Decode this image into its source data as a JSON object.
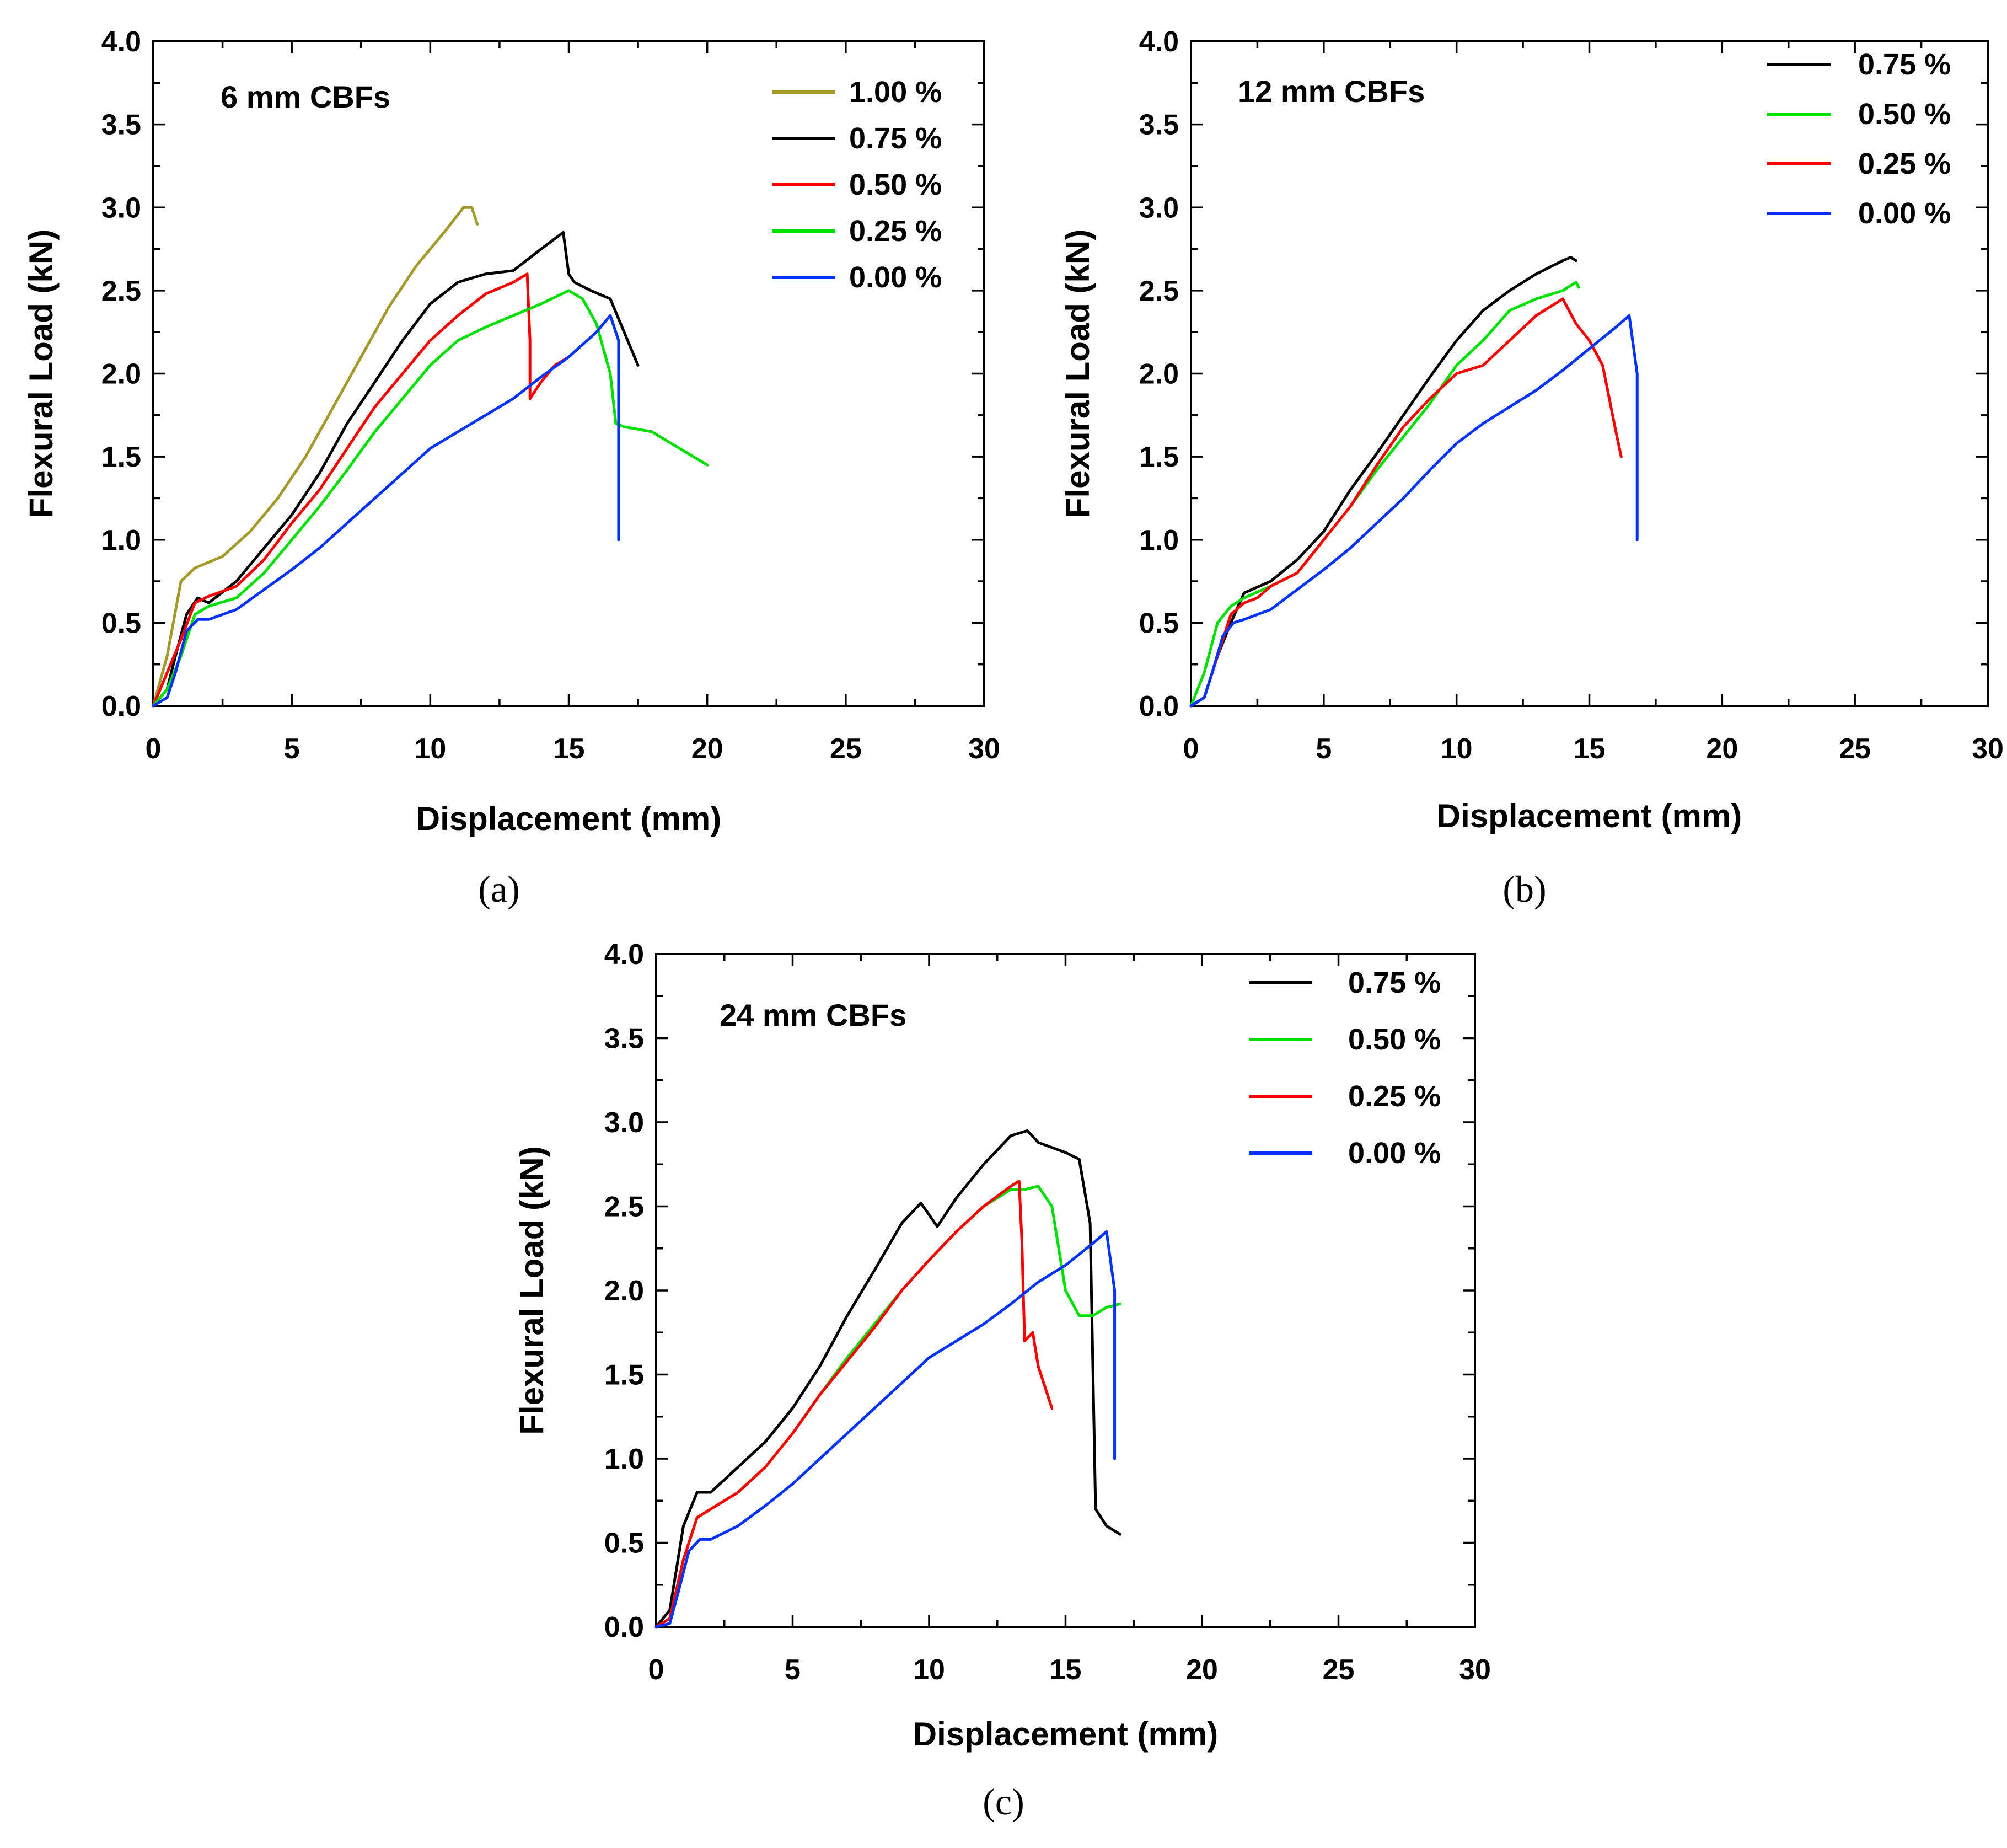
{
  "chart_data": [
    {
      "type": "line",
      "title": "6 mm CBFs",
      "caption": "(a)",
      "xlabel": "Displacement (mm)",
      "ylabel": "Flexural Load (kN)",
      "xlim": [
        0,
        30
      ],
      "ylim": [
        0,
        4
      ],
      "xticks": [
        "0",
        "5",
        "10",
        "15",
        "20",
        "25",
        "30"
      ],
      "yticks": [
        "0.0",
        "0.5",
        "1.0",
        "1.5",
        "2.0",
        "2.5",
        "3.0",
        "3.5",
        "4.0"
      ],
      "grid": false,
      "legend_position": "top-right",
      "series": [
        {
          "name": "1.00 %",
          "color": "#a39a2a",
          "x": [
            0,
            0.5,
            1.0,
            1.5,
            2.5,
            3.5,
            4.5,
            5.5,
            6.5,
            7.5,
            8.5,
            9.5,
            10.5,
            11.2,
            11.5,
            11.7
          ],
          "y": [
            0,
            0.3,
            0.75,
            0.83,
            0.9,
            1.05,
            1.25,
            1.5,
            1.8,
            2.1,
            2.4,
            2.65,
            2.85,
            3.0,
            3.0,
            2.9
          ]
        },
        {
          "name": "0.75 %",
          "color": "#000000",
          "x": [
            0,
            0.5,
            0.8,
            1.2,
            1.6,
            2.0,
            3.0,
            4.0,
            5.0,
            6.0,
            7.0,
            8.0,
            9.0,
            10.0,
            11.0,
            12.0,
            13.0,
            14.0,
            14.8,
            15.0,
            15.2,
            15.8,
            16.5,
            17.0,
            17.5
          ],
          "y": [
            0,
            0.1,
            0.3,
            0.55,
            0.65,
            0.62,
            0.75,
            0.95,
            1.15,
            1.4,
            1.7,
            1.95,
            2.2,
            2.42,
            2.55,
            2.6,
            2.62,
            2.75,
            2.85,
            2.6,
            2.55,
            2.5,
            2.45,
            2.25,
            2.05
          ]
        },
        {
          "name": "0.50 %",
          "color": "#ff0000",
          "x": [
            0,
            0.5,
            1.0,
            1.5,
            2.0,
            3.0,
            4.0,
            5.0,
            6.0,
            7.0,
            8.0,
            9.0,
            10.0,
            11.0,
            12.0,
            13.0,
            13.5,
            13.6,
            13.6,
            14.0,
            14.5,
            15.0
          ],
          "y": [
            0,
            0.2,
            0.4,
            0.62,
            0.66,
            0.72,
            0.88,
            1.1,
            1.3,
            1.55,
            1.8,
            2.0,
            2.2,
            2.35,
            2.48,
            2.55,
            2.6,
            2.2,
            1.85,
            1.95,
            2.05,
            2.1
          ]
        },
        {
          "name": "0.25 %",
          "color": "#00e000",
          "x": [
            0,
            0.5,
            1.0,
            1.5,
            2.0,
            3.0,
            4.0,
            5.0,
            6.0,
            7.0,
            8.0,
            9.0,
            10.0,
            11.0,
            12.0,
            13.0,
            14.0,
            15.0,
            15.5,
            16.0,
            16.5,
            16.7,
            17.0,
            18.0,
            19.0,
            19.5,
            20.0
          ],
          "y": [
            0,
            0.1,
            0.3,
            0.55,
            0.6,
            0.65,
            0.8,
            1.0,
            1.2,
            1.42,
            1.65,
            1.85,
            2.05,
            2.2,
            2.28,
            2.35,
            2.42,
            2.5,
            2.45,
            2.3,
            2.0,
            1.7,
            1.68,
            1.65,
            1.55,
            1.5,
            1.45
          ]
        },
        {
          "name": "0.00 %",
          "color": "#0033ff",
          "x": [
            0,
            0.5,
            0.8,
            1.2,
            1.6,
            2.0,
            3.0,
            4.0,
            5.0,
            6.0,
            7.0,
            8.0,
            9.0,
            10.0,
            11.0,
            12.0,
            13.0,
            14.0,
            15.0,
            16.0,
            16.5,
            16.8,
            16.8
          ],
          "y": [
            0,
            0.05,
            0.2,
            0.45,
            0.52,
            0.52,
            0.58,
            0.7,
            0.82,
            0.95,
            1.1,
            1.25,
            1.4,
            1.55,
            1.65,
            1.75,
            1.85,
            1.98,
            2.1,
            2.25,
            2.35,
            2.2,
            1.0
          ]
        }
      ]
    },
    {
      "type": "line",
      "title": "12 mm CBFs",
      "caption": "(b)",
      "xlabel": "Displacement (mm)",
      "ylabel": "Flexural Load (kN)",
      "xlim": [
        0,
        30
      ],
      "ylim": [
        0,
        4
      ],
      "xticks": [
        "0",
        "5",
        "10",
        "15",
        "20",
        "25",
        "30"
      ],
      "yticks": [
        "0.0",
        "0.5",
        "1.0",
        "1.5",
        "2.0",
        "2.5",
        "3.0",
        "3.5",
        "4.0"
      ],
      "grid": false,
      "legend_position": "top-right",
      "series": [
        {
          "name": "0.75 %",
          "color": "#000000",
          "x": [
            0,
            0.5,
            1.0,
            1.5,
            2.0,
            3.0,
            4.0,
            5.0,
            6.0,
            7.0,
            8.0,
            9.0,
            10.0,
            11.0,
            12.0,
            13.0,
            14.0,
            14.3,
            14.5
          ],
          "y": [
            0,
            0.05,
            0.3,
            0.5,
            0.68,
            0.75,
            0.88,
            1.05,
            1.3,
            1.52,
            1.75,
            1.98,
            2.2,
            2.38,
            2.5,
            2.6,
            2.68,
            2.7,
            2.68
          ]
        },
        {
          "name": "0.50 %",
          "color": "#00e000",
          "x": [
            0,
            0.5,
            1.0,
            1.5,
            2.0,
            3.0,
            4.0,
            5.0,
            6.0,
            7.0,
            8.0,
            9.0,
            10.0,
            11.0,
            12.0,
            13.0,
            14.0,
            14.5,
            14.6
          ],
          "y": [
            0,
            0.2,
            0.5,
            0.6,
            0.65,
            0.72,
            0.8,
            1.0,
            1.2,
            1.42,
            1.62,
            1.82,
            2.05,
            2.2,
            2.38,
            2.45,
            2.5,
            2.55,
            2.52
          ]
        },
        {
          "name": "0.25 %",
          "color": "#ff0000",
          "x": [
            0,
            0.5,
            1.0,
            1.5,
            2.0,
            2.5,
            3.0,
            4.0,
            5.0,
            6.0,
            7.0,
            8.0,
            9.0,
            10.0,
            11.0,
            12.0,
            13.0,
            14.0,
            14.5,
            15.0,
            15.5,
            16.0,
            16.2
          ],
          "y": [
            0,
            0.05,
            0.3,
            0.55,
            0.62,
            0.65,
            0.72,
            0.8,
            1.0,
            1.2,
            1.45,
            1.68,
            1.85,
            2.0,
            2.05,
            2.2,
            2.35,
            2.45,
            2.3,
            2.2,
            2.05,
            1.65,
            1.5
          ]
        },
        {
          "name": "0.00 %",
          "color": "#0033ff",
          "x": [
            0,
            0.5,
            0.8,
            1.2,
            1.6,
            2.0,
            3.0,
            4.0,
            5.0,
            6.0,
            7.0,
            8.0,
            9.0,
            10.0,
            11.0,
            12.0,
            13.0,
            14.0,
            15.0,
            16.0,
            16.5,
            16.8,
            16.8
          ],
          "y": [
            0,
            0.05,
            0.2,
            0.42,
            0.5,
            0.52,
            0.58,
            0.7,
            0.82,
            0.95,
            1.1,
            1.25,
            1.42,
            1.58,
            1.7,
            1.8,
            1.9,
            2.02,
            2.15,
            2.28,
            2.35,
            2.0,
            1.0
          ]
        }
      ]
    },
    {
      "type": "line",
      "title": "24 mm CBFs",
      "caption": "(c)",
      "xlabel": "Displacement (mm)",
      "ylabel": "Flexural Load (kN)",
      "xlim": [
        0,
        30
      ],
      "ylim": [
        0,
        4
      ],
      "xticks": [
        "0",
        "5",
        "10",
        "15",
        "20",
        "25",
        "30"
      ],
      "yticks": [
        "0.0",
        "0.5",
        "1.0",
        "1.5",
        "2.0",
        "2.5",
        "3.0",
        "3.5",
        "4.0"
      ],
      "grid": false,
      "legend_position": "top-right",
      "series": [
        {
          "name": "0.75 %",
          "color": "#000000",
          "x": [
            0,
            0.5,
            1.0,
            1.5,
            2.0,
            3.0,
            4.0,
            5.0,
            6.0,
            7.0,
            8.0,
            9.0,
            9.7,
            10.3,
            11.0,
            12.0,
            13.0,
            13.6,
            14.0,
            15.0,
            15.5,
            15.9,
            16.1,
            16.5,
            17.0
          ],
          "y": [
            0,
            0.1,
            0.6,
            0.8,
            0.8,
            0.95,
            1.1,
            1.3,
            1.55,
            1.85,
            2.12,
            2.4,
            2.52,
            2.38,
            2.55,
            2.75,
            2.92,
            2.95,
            2.88,
            2.82,
            2.78,
            2.4,
            0.7,
            0.6,
            0.55
          ]
        },
        {
          "name": "0.50 %",
          "color": "#00e000",
          "x": [
            0,
            0.5,
            1.0,
            1.5,
            2.0,
            3.0,
            4.0,
            5.0,
            6.0,
            7.0,
            8.0,
            9.0,
            10.0,
            11.0,
            12.0,
            13.0,
            13.5,
            14.0,
            14.5,
            15.0,
            15.5,
            16.0,
            16.5,
            17.0
          ],
          "y": [
            0,
            0.05,
            0.4,
            0.65,
            0.7,
            0.8,
            0.95,
            1.15,
            1.38,
            1.6,
            1.8,
            2.0,
            2.18,
            2.35,
            2.5,
            2.6,
            2.6,
            2.62,
            2.5,
            2.0,
            1.85,
            1.85,
            1.9,
            1.92
          ]
        },
        {
          "name": "0.25 %",
          "color": "#ff0000",
          "x": [
            0,
            0.5,
            1.0,
            1.5,
            2.0,
            3.0,
            4.0,
            5.0,
            6.0,
            7.0,
            8.0,
            9.0,
            10.0,
            11.0,
            12.0,
            13.0,
            13.3,
            13.4,
            13.5,
            13.8,
            14.0,
            14.5
          ],
          "y": [
            0,
            0.05,
            0.4,
            0.65,
            0.7,
            0.8,
            0.95,
            1.15,
            1.38,
            1.58,
            1.78,
            2.0,
            2.18,
            2.35,
            2.5,
            2.62,
            2.65,
            2.3,
            1.7,
            1.75,
            1.55,
            1.3
          ]
        },
        {
          "name": "0.00 %",
          "color": "#0033ff",
          "x": [
            0,
            0.5,
            0.8,
            1.2,
            1.6,
            2.0,
            3.0,
            4.0,
            5.0,
            6.0,
            7.0,
            8.0,
            9.0,
            10.0,
            11.0,
            12.0,
            13.0,
            14.0,
            15.0,
            16.0,
            16.5,
            16.8,
            16.8
          ],
          "y": [
            0,
            0.02,
            0.2,
            0.45,
            0.52,
            0.52,
            0.6,
            0.72,
            0.85,
            1.0,
            1.15,
            1.3,
            1.45,
            1.6,
            1.7,
            1.8,
            1.92,
            2.05,
            2.15,
            2.28,
            2.35,
            2.0,
            1.0
          ]
        }
      ]
    }
  ]
}
